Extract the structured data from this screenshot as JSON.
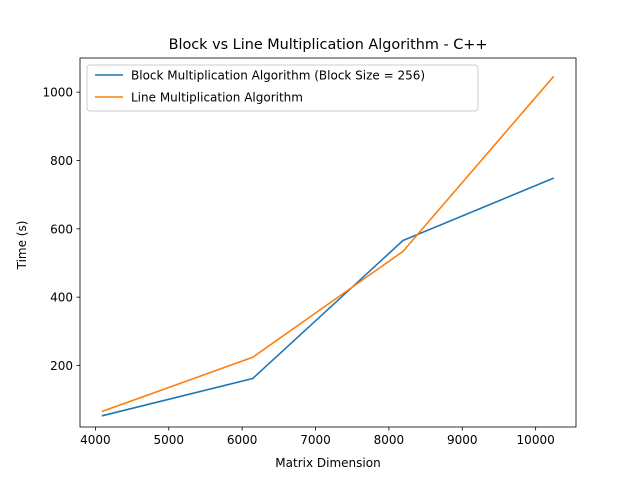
{
  "chart_data": {
    "type": "line",
    "title": "Block vs Line Multiplication Algorithm - C++",
    "xlabel": "Matrix Dimension",
    "ylabel": "Time (s)",
    "xlim": [
      3790,
      10550
    ],
    "ylim": [
      20,
      1100
    ],
    "xticks": [
      4000,
      5000,
      6000,
      7000,
      8000,
      9000,
      10000
    ],
    "yticks": [
      200,
      400,
      600,
      800,
      1000
    ],
    "grid": false,
    "legend_position": "upper-left",
    "series": [
      {
        "name": "Block Multiplication Algorithm (Block Size = 256)",
        "color": "#1f77b4",
        "x": [
          4096,
          6144,
          8192,
          10240
        ],
        "y": [
          53,
          162,
          566,
          748
        ]
      },
      {
        "name": "Line Multiplication Algorithm",
        "color": "#ff7f0e",
        "x": [
          4096,
          6144,
          8192,
          10240
        ],
        "y": [
          66,
          224,
          534,
          1045
        ]
      }
    ]
  }
}
